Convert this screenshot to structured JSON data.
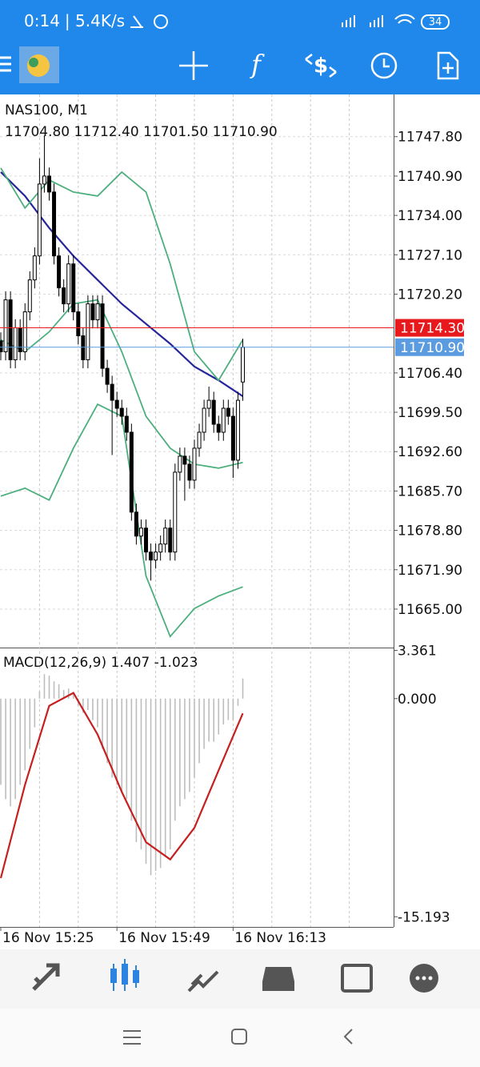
{
  "status_bar": {
    "time": "0:14",
    "speed": "| 5.4K/s",
    "battery": "34"
  },
  "toolbar": {
    "function_icon": "f",
    "trade_icon": "$"
  },
  "chart_data": {
    "type": "candlestick",
    "symbol": "NAS100, M1",
    "ohlc": [
      "11704.80",
      "11712.40",
      "11701.50",
      "11710.90"
    ],
    "ylim": [
      11658.4,
      11755.2
    ],
    "yticks": [
      {
        "value": 11747.8,
        "label": "11747.80"
      },
      {
        "value": 11740.9,
        "label": "11740.90"
      },
      {
        "value": 11734,
        "label": "11734.00"
      },
      {
        "value": 11727.1,
        "label": "11727.10"
      },
      {
        "value": 11720.2,
        "label": "11720.20"
      },
      {
        "value": 11706.4,
        "label": "11706.40"
      },
      {
        "value": 11699.5,
        "label": "11699.50"
      },
      {
        "value": 11692.6,
        "label": "11692.60"
      },
      {
        "value": 11685.7,
        "label": "11685.70"
      },
      {
        "value": 11678.8,
        "label": "11678.80"
      },
      {
        "value": 11671.9,
        "label": "11671.90"
      },
      {
        "value": 11665,
        "label": "11665.00"
      }
    ],
    "price_lines": [
      {
        "value": 11714.3,
        "label": "11714.30",
        "color": "#e8191c"
      },
      {
        "value": 11710.9,
        "label": "11710.90",
        "color": "#5b9be0"
      }
    ],
    "xticks": [
      {
        "value": 0,
        "label": "16 Nov 15:25"
      },
      {
        "value": 24,
        "label": "16 Nov 15:49"
      },
      {
        "value": 48,
        "label": "16 Nov 16:13"
      }
    ],
    "xgrid": [
      8,
      16,
      24,
      32,
      40,
      48,
      56,
      64,
      72
    ],
    "open": [
      11712.0,
      11710.1,
      11719.2,
      11708.7,
      11714.3,
      11710.1,
      11717.1,
      11722.7,
      11726.9,
      11739.5,
      11740.9,
      11738.1,
      11726.9,
      11721.3,
      11718.5,
      11725.5,
      11717.1,
      11712.9,
      11708.7,
      11718.5,
      11715.7,
      11718.5,
      11707.2,
      11704.4,
      11701.6,
      11700.2,
      11698.8,
      11696.0,
      11682.0,
      11677.8,
      11679.2,
      11675.0,
      11673.6,
      11675.0,
      11676.4,
      11679.2,
      11675.0,
      11689.0,
      11691.8,
      11690.4,
      11687.6,
      11693.2,
      11696.0,
      11700.2,
      11701.6,
      11697.4,
      11696.0,
      11700.2,
      11698.8,
      11691.1,
      11704.8
    ],
    "high": [
      11713.5,
      11720.7,
      11720.7,
      11715.8,
      11715.8,
      11718.6,
      11724.2,
      11728.4,
      11744.0,
      11748.0,
      11742.4,
      11739.6,
      11728.4,
      11722.8,
      11727.0,
      11727.0,
      11718.6,
      11714.4,
      11720.0,
      11720.0,
      11720.0,
      11720.0,
      11708.7,
      11705.9,
      11703.1,
      11701.7,
      11700.3,
      11697.5,
      11683.5,
      11680.7,
      11680.7,
      11676.5,
      11676.5,
      11677.9,
      11680.7,
      11680.7,
      11690.5,
      11693.3,
      11693.3,
      11691.9,
      11694.7,
      11697.5,
      11701.7,
      11704.0,
      11703.1,
      11698.9,
      11701.7,
      11701.7,
      11700.3,
      11703.1,
      11712.4
    ],
    "low": [
      11708.6,
      11708.6,
      11707.2,
      11707.2,
      11708.6,
      11708.6,
      11715.6,
      11721.2,
      11725.4,
      11738.0,
      11736.6,
      11725.4,
      11719.8,
      11717.0,
      11717.0,
      11715.6,
      11711.4,
      11707.2,
      11707.2,
      11714.2,
      11714.2,
      11705.7,
      11702.9,
      11692.0,
      11698.7,
      11697.3,
      11694.5,
      11680.5,
      11676.3,
      11676.3,
      11673.5,
      11670.0,
      11672.1,
      11673.5,
      11674.9,
      11673.5,
      11673.5,
      11687.5,
      11684.0,
      11686.1,
      11686.1,
      11691.7,
      11694.5,
      11698.7,
      11695.9,
      11694.5,
      11694.5,
      11697.3,
      11688.0,
      11689.6,
      11701.5
    ],
    "close": [
      11710.1,
      11719.2,
      11708.7,
      11714.3,
      11710.1,
      11717.1,
      11722.7,
      11726.9,
      11739.5,
      11740.9,
      11738.1,
      11726.9,
      11721.3,
      11718.5,
      11725.5,
      11717.1,
      11712.9,
      11708.7,
      11718.5,
      11715.7,
      11718.5,
      11707.2,
      11704.4,
      11701.6,
      11700.2,
      11698.8,
      11696.0,
      11682.0,
      11677.8,
      11679.2,
      11675.0,
      11673.6,
      11675.0,
      11676.4,
      11679.2,
      11675.0,
      11689.0,
      11691.8,
      11690.4,
      11687.6,
      11693.2,
      11696.0,
      11700.2,
      11701.6,
      11697.4,
      11696.0,
      11700.2,
      11698.8,
      11691.1,
      11701.6,
      11710.9
    ],
    "indicator_index": [
      0,
      5,
      10,
      15,
      20,
      25,
      30,
      35,
      40,
      45,
      50
    ],
    "indicators": [
      {
        "color": "#26269a",
        "values": [
          11741.6,
          11737.4,
          11731.8,
          11726.9,
          11722.7,
          11718.5,
          11715.0,
          11711.5,
          11707.5,
          11705.1,
          11702.3
        ]
      },
      {
        "color": "#4caf7d",
        "values": [
          11742.3,
          11735.3,
          11740.2,
          11738.1,
          11737.4,
          11741.6,
          11738.1,
          11725.5,
          11710.1,
          11705.1,
          11712.2
        ]
      },
      {
        "color": "#4caf7d",
        "values": [
          11712.2,
          11710.1,
          11713.6,
          11718.5,
          11719.2,
          11710.1,
          11698.8,
          11693.2,
          11690.4,
          11689.7,
          11690.7
        ]
      },
      {
        "color": "#4caf7d",
        "values": [
          11684.8,
          11686.2,
          11684.1,
          11693.2,
          11700.9,
          11698.8,
          11670.8,
          11660.2,
          11665.1,
          11667.3,
          11668.9
        ]
      }
    ],
    "macd": {
      "title": "MACD(12,26,9)",
      "main": "1.407",
      "signal": "-1.023",
      "ylim": [
        -15.9,
        3.5
      ],
      "yticks": [
        {
          "value": 3.361,
          "label": "3.361"
        },
        {
          "value": 0,
          "label": "0.000"
        },
        {
          "value": -15.193,
          "label": "-15.193"
        }
      ],
      "histogram_color": "#bdbdbd",
      "histogram": [
        -6,
        -7,
        -7.5,
        -7,
        -6,
        -5,
        -3.5,
        -2,
        0.5,
        1.7,
        1.6,
        1.2,
        1.0,
        0.6,
        0.7,
        0.3,
        -0.5,
        -1.0,
        -0.8,
        -1.5,
        -2.0,
        -3.5,
        -4.5,
        -5.5,
        -6.0,
        -6.5,
        -7.0,
        -8.5,
        -10.0,
        -10.5,
        -11.5,
        -12.3,
        -12.0,
        -11.8,
        -11.0,
        -10.5,
        -8.5,
        -7.5,
        -7.0,
        -6.5,
        -5.5,
        -4.5,
        -3.5,
        -3.0,
        -3.0,
        -2.5,
        -1.8,
        -1.5,
        -1.5,
        -0.5,
        1.407
      ],
      "signal_color": "#c62020",
      "signal_values": [
        -12.5,
        -6.0,
        -0.5,
        0.4,
        -2.5,
        -6.5,
        -10.0,
        -11.2,
        -9.0,
        -5.0,
        -1.023
      ]
    }
  }
}
